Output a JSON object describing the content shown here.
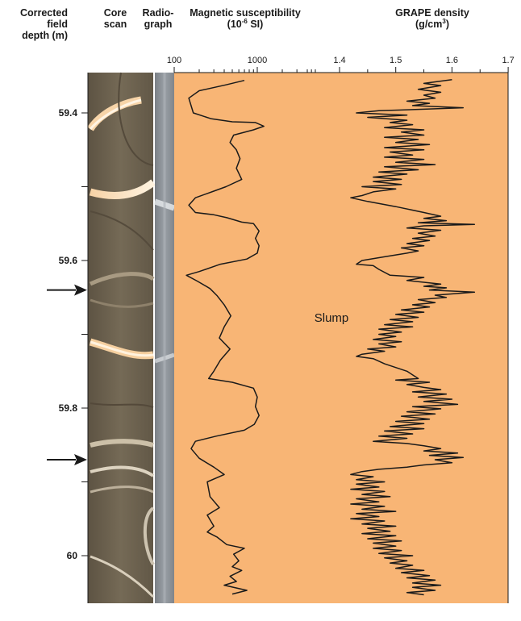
{
  "headers": {
    "depth": {
      "line1": "Corrected",
      "line2": "field",
      "line3": "depth (m)"
    },
    "core_scan": {
      "line1": "Core",
      "line2": "scan"
    },
    "radiograph": {
      "line1": "Radio-",
      "line2": "graph"
    },
    "mag_sus": {
      "line1": "Magnetic susceptibility",
      "line2_pre": "(10",
      "line2_sup": "-6",
      "line2_post": " SI)"
    },
    "grape": {
      "line1": "GRAPE density",
      "line2_pre": "(g/cm",
      "line2_sup": "3",
      "line2_post": ")"
    }
  },
  "annotation": "Slump",
  "arrows": [
    59.64,
    59.87
  ],
  "colors": {
    "panel_fill": "#f8b575",
    "curve": "#1a1a1a",
    "core_dark": "#6b5e4c",
    "radiograph": "#8f959b"
  },
  "chart_data": [
    {
      "type": "line",
      "name": "magnetic-susceptibility",
      "x_scale": "log",
      "xlim": [
        100,
        5000
      ],
      "x_tick_labels": [
        "100",
        "1000"
      ],
      "y_axis": "depth",
      "ylim": [
        59.35,
        60.06
      ],
      "y_ticks": [
        59.4,
        59.5,
        59.6,
        59.7,
        59.8,
        59.9,
        60.0
      ],
      "y_tick_labels": [
        "59.4",
        "",
        "59.6",
        "",
        "59.8",
        "",
        "60"
      ],
      "points": [
        [
          700,
          59.356
        ],
        [
          420,
          59.362
        ],
        [
          200,
          59.37
        ],
        [
          150,
          59.38
        ],
        [
          170,
          59.4
        ],
        [
          280,
          59.408
        ],
        [
          500,
          59.412
        ],
        [
          950,
          59.413
        ],
        [
          1200,
          59.418
        ],
        [
          900,
          59.423
        ],
        [
          520,
          59.43
        ],
        [
          470,
          59.44
        ],
        [
          560,
          59.45
        ],
        [
          620,
          59.462
        ],
        [
          560,
          59.475
        ],
        [
          650,
          59.49
        ],
        [
          420,
          59.5
        ],
        [
          300,
          59.506
        ],
        [
          180,
          59.515
        ],
        [
          150,
          59.525
        ],
        [
          180,
          59.535
        ],
        [
          300,
          59.538
        ],
        [
          430,
          59.542
        ],
        [
          650,
          59.548
        ],
        [
          900,
          59.55
        ],
        [
          1050,
          59.56
        ],
        [
          950,
          59.57
        ],
        [
          1050,
          59.58
        ],
        [
          1000,
          59.59
        ],
        [
          750,
          59.598
        ],
        [
          360,
          59.605
        ],
        [
          200,
          59.615
        ],
        [
          140,
          59.62
        ],
        [
          190,
          59.628
        ],
        [
          270,
          59.638
        ],
        [
          330,
          59.648
        ],
        [
          400,
          59.66
        ],
        [
          480,
          59.675
        ],
        [
          400,
          59.69
        ],
        [
          350,
          59.705
        ],
        [
          470,
          59.72
        ],
        [
          360,
          59.735
        ],
        [
          300,
          59.75
        ],
        [
          260,
          59.76
        ],
        [
          500,
          59.765
        ],
        [
          900,
          59.773
        ],
        [
          1000,
          59.785
        ],
        [
          950,
          59.798
        ],
        [
          1050,
          59.81
        ],
        [
          920,
          59.822
        ],
        [
          700,
          59.83
        ],
        [
          320,
          59.838
        ],
        [
          180,
          59.845
        ],
        [
          160,
          59.855
        ],
        [
          200,
          59.868
        ],
        [
          300,
          59.88
        ],
        [
          400,
          59.89
        ],
        [
          250,
          59.9
        ],
        [
          270,
          59.92
        ],
        [
          350,
          59.935
        ],
        [
          250,
          59.945
        ],
        [
          300,
          59.96
        ],
        [
          250,
          59.968
        ],
        [
          330,
          59.975
        ],
        [
          430,
          59.985
        ],
        [
          700,
          59.99
        ],
        [
          520,
          59.998
        ],
        [
          600,
          60.007
        ],
        [
          500,
          60.015
        ],
        [
          650,
          60.02
        ],
        [
          470,
          60.028
        ],
        [
          560,
          60.035
        ],
        [
          400,
          60.04
        ],
        [
          750,
          60.047
        ],
        [
          500,
          60.052
        ]
      ]
    },
    {
      "type": "line",
      "name": "grape-density",
      "xlim": [
        1.3,
        1.7
      ],
      "x_ticks": [
        1.4,
        1.5,
        1.6,
        1.7
      ],
      "x_tick_labels": [
        "1.4",
        "1.5",
        "1.6",
        "1.7"
      ],
      "y_axis": "depth",
      "ylim": [
        59.35,
        60.06
      ],
      "points": [
        [
          1.6,
          59.355
        ],
        [
          1.55,
          59.36
        ],
        [
          1.58,
          59.363
        ],
        [
          1.54,
          59.368
        ],
        [
          1.58,
          59.372
        ],
        [
          1.55,
          59.376
        ],
        [
          1.57,
          59.38
        ],
        [
          1.52,
          59.384
        ],
        [
          1.56,
          59.387
        ],
        [
          1.53,
          59.39
        ],
        [
          1.62,
          59.393
        ],
        [
          1.55,
          59.395
        ],
        [
          1.47,
          59.397
        ],
        [
          1.43,
          59.4
        ],
        [
          1.52,
          59.403
        ],
        [
          1.45,
          59.406
        ],
        [
          1.52,
          59.41
        ],
        [
          1.49,
          59.413
        ],
        [
          1.53,
          59.416
        ],
        [
          1.48,
          59.42
        ],
        [
          1.55,
          59.423
        ],
        [
          1.51,
          59.426
        ],
        [
          1.55,
          59.43
        ],
        [
          1.48,
          59.433
        ],
        [
          1.54,
          59.436
        ],
        [
          1.5,
          59.44
        ],
        [
          1.56,
          59.443
        ],
        [
          1.48,
          59.447
        ],
        [
          1.55,
          59.45
        ],
        [
          1.49,
          59.453
        ],
        [
          1.53,
          59.457
        ],
        [
          1.48,
          59.46
        ],
        [
          1.55,
          59.463
        ],
        [
          1.5,
          59.467
        ],
        [
          1.57,
          59.47
        ],
        [
          1.48,
          59.473
        ],
        [
          1.54,
          59.477
        ],
        [
          1.47,
          59.48
        ],
        [
          1.52,
          59.483
        ],
        [
          1.46,
          59.487
        ],
        [
          1.51,
          59.49
        ],
        [
          1.46,
          59.493
        ],
        [
          1.51,
          59.497
        ],
        [
          1.44,
          59.5
        ],
        [
          1.5,
          59.503
        ],
        [
          1.46,
          59.507
        ],
        [
          1.44,
          59.512
        ],
        [
          1.42,
          59.515
        ],
        [
          1.45,
          59.52
        ],
        [
          1.5,
          59.527
        ],
        [
          1.55,
          59.535
        ],
        [
          1.58,
          59.54
        ],
        [
          1.55,
          59.543
        ],
        [
          1.59,
          59.546
        ],
        [
          1.54,
          59.549
        ],
        [
          1.64,
          59.551
        ],
        [
          1.55,
          59.553
        ],
        [
          1.52,
          59.556
        ],
        [
          1.58,
          59.559
        ],
        [
          1.54,
          59.563
        ],
        [
          1.57,
          59.567
        ],
        [
          1.53,
          59.57
        ],
        [
          1.56,
          59.573
        ],
        [
          1.52,
          59.577
        ],
        [
          1.55,
          59.58
        ],
        [
          1.51,
          59.583
        ],
        [
          1.54,
          59.587
        ],
        [
          1.52,
          59.59
        ],
        [
          1.48,
          59.595
        ],
        [
          1.44,
          59.6
        ],
        [
          1.43,
          59.605
        ],
        [
          1.46,
          59.607
        ],
        [
          1.47,
          59.612
        ],
        [
          1.49,
          59.62
        ],
        [
          1.55,
          59.623
        ],
        [
          1.52,
          59.627
        ],
        [
          1.58,
          59.632
        ],
        [
          1.55,
          59.635
        ],
        [
          1.59,
          59.637
        ],
        [
          1.56,
          59.64
        ],
        [
          1.64,
          59.643
        ],
        [
          1.57,
          59.647
        ],
        [
          1.59,
          59.65
        ],
        [
          1.54,
          59.653
        ],
        [
          1.57,
          59.657
        ],
        [
          1.53,
          59.66
        ],
        [
          1.56,
          59.663
        ],
        [
          1.51,
          59.667
        ],
        [
          1.55,
          59.67
        ],
        [
          1.5,
          59.673
        ],
        [
          1.54,
          59.677
        ],
        [
          1.49,
          59.68
        ],
        [
          1.53,
          59.683
        ],
        [
          1.48,
          59.687
        ],
        [
          1.53,
          59.69
        ],
        [
          1.47,
          59.693
        ],
        [
          1.51,
          59.697
        ],
        [
          1.47,
          59.7
        ],
        [
          1.5,
          59.703
        ],
        [
          1.46,
          59.707
        ],
        [
          1.51,
          59.71
        ],
        [
          1.47,
          59.713
        ],
        [
          1.5,
          59.717
        ],
        [
          1.45,
          59.72
        ],
        [
          1.48,
          59.723
        ],
        [
          1.44,
          59.727
        ],
        [
          1.43,
          59.73
        ],
        [
          1.46,
          59.733
        ],
        [
          1.48,
          59.74
        ],
        [
          1.52,
          59.75
        ],
        [
          1.54,
          59.76
        ],
        [
          1.5,
          59.762
        ],
        [
          1.56,
          59.765
        ],
        [
          1.52,
          59.768
        ],
        [
          1.55,
          59.772
        ],
        [
          1.58,
          59.775
        ],
        [
          1.53,
          59.778
        ],
        [
          1.59,
          59.781
        ],
        [
          1.54,
          59.785
        ],
        [
          1.6,
          59.788
        ],
        [
          1.55,
          59.791
        ],
        [
          1.61,
          59.795
        ],
        [
          1.53,
          59.798
        ],
        [
          1.58,
          59.801
        ],
        [
          1.52,
          59.805
        ],
        [
          1.57,
          59.808
        ],
        [
          1.51,
          59.811
        ],
        [
          1.56,
          59.815
        ],
        [
          1.5,
          59.818
        ],
        [
          1.55,
          59.821
        ],
        [
          1.49,
          59.825
        ],
        [
          1.55,
          59.828
        ],
        [
          1.48,
          59.831
        ],
        [
          1.53,
          59.835
        ],
        [
          1.47,
          59.838
        ],
        [
          1.52,
          59.841
        ],
        [
          1.46,
          59.845
        ],
        [
          1.52,
          59.848
        ],
        [
          1.55,
          59.851
        ],
        [
          1.58,
          59.855
        ],
        [
          1.55,
          59.858
        ],
        [
          1.61,
          59.861
        ],
        [
          1.56,
          59.864
        ],
        [
          1.62,
          59.867
        ],
        [
          1.57,
          59.87
        ],
        [
          1.6,
          59.874
        ],
        [
          1.55,
          59.877
        ],
        [
          1.52,
          59.88
        ],
        [
          1.47,
          59.883
        ],
        [
          1.44,
          59.886
        ],
        [
          1.42,
          59.89
        ],
        [
          1.46,
          59.893
        ],
        [
          1.43,
          59.897
        ],
        [
          1.48,
          59.9
        ],
        [
          1.43,
          59.903
        ],
        [
          1.47,
          59.907
        ],
        [
          1.42,
          59.91
        ],
        [
          1.48,
          59.913
        ],
        [
          1.44,
          59.917
        ],
        [
          1.49,
          59.92
        ],
        [
          1.43,
          59.923
        ],
        [
          1.47,
          59.927
        ],
        [
          1.42,
          59.93
        ],
        [
          1.48,
          59.933
        ],
        [
          1.44,
          59.937
        ],
        [
          1.5,
          59.94
        ],
        [
          1.43,
          59.943
        ],
        [
          1.47,
          59.947
        ],
        [
          1.42,
          59.95
        ],
        [
          1.48,
          59.953
        ],
        [
          1.44,
          59.957
        ],
        [
          1.5,
          59.96
        ],
        [
          1.45,
          59.963
        ],
        [
          1.49,
          59.967
        ],
        [
          1.44,
          59.97
        ],
        [
          1.5,
          59.973
        ],
        [
          1.45,
          59.977
        ],
        [
          1.51,
          59.98
        ],
        [
          1.46,
          59.983
        ],
        [
          1.5,
          59.987
        ],
        [
          1.46,
          59.99
        ],
        [
          1.51,
          59.993
        ],
        [
          1.47,
          59.997
        ],
        [
          1.53,
          60.0
        ],
        [
          1.48,
          60.003
        ],
        [
          1.52,
          60.007
        ],
        [
          1.49,
          60.01
        ],
        [
          1.53,
          60.013
        ],
        [
          1.5,
          60.017
        ],
        [
          1.55,
          60.02
        ],
        [
          1.51,
          60.023
        ],
        [
          1.56,
          60.027
        ],
        [
          1.52,
          60.03
        ],
        [
          1.57,
          60.033
        ],
        [
          1.53,
          60.037
        ],
        [
          1.58,
          60.04
        ],
        [
          1.53,
          60.043
        ],
        [
          1.57,
          60.047
        ],
        [
          1.52,
          60.05
        ],
        [
          1.55,
          60.053
        ]
      ]
    }
  ]
}
